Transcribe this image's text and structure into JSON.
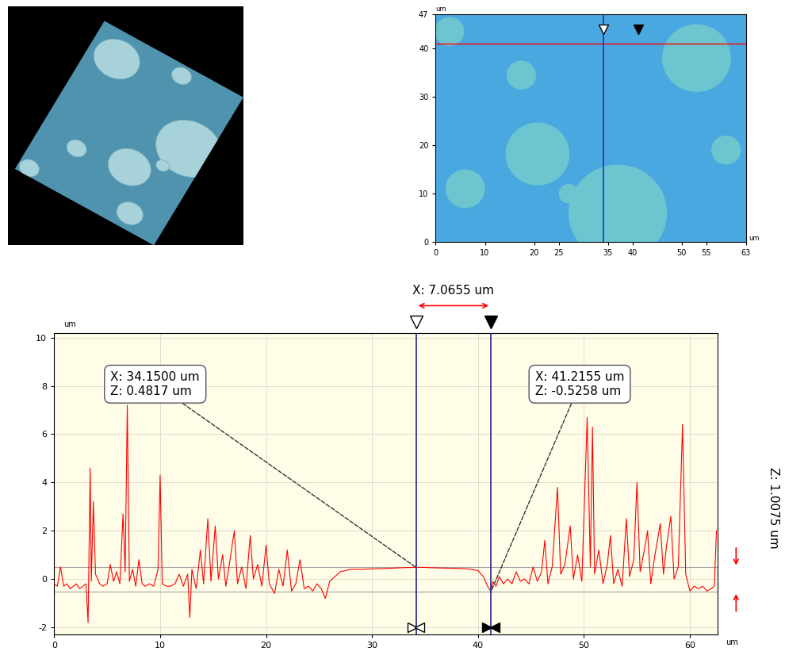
{
  "chart_data": [
    {
      "type": "image_map",
      "xlabel": "um",
      "ylabel": "um",
      "xlim": [
        0,
        63
      ],
      "ylim": [
        0,
        47
      ],
      "xticks": [
        0,
        10,
        20,
        25,
        35,
        40,
        50,
        55,
        63
      ],
      "yticks": [
        0,
        10,
        20,
        30,
        40,
        47
      ],
      "profile_y": 41,
      "cursors_x": [
        34.15,
        41.2155
      ],
      "regions": [
        {
          "x": 37,
          "y": 6,
          "r": 10
        },
        {
          "x": 20.7,
          "y": 18.2,
          "r": 6.5
        },
        {
          "x": 6,
          "y": 11,
          "r": 4
        },
        {
          "x": 53,
          "y": 38,
          "r": 7
        },
        {
          "x": 2.8,
          "y": 43.5,
          "r": 3
        },
        {
          "x": 17.4,
          "y": 34.5,
          "r": 3
        },
        {
          "x": 59,
          "y": 19,
          "r": 3
        },
        {
          "x": 27,
          "y": 10,
          "r": 2
        }
      ]
    },
    {
      "type": "line",
      "xlabel": "um",
      "ylabel": "um",
      "xlim": [
        0,
        62.6
      ],
      "ylim": [
        -2.3,
        10.2
      ],
      "xticks": [
        0,
        10,
        20,
        30,
        40,
        50,
        60
      ],
      "yticks": [
        -2,
        0,
        2,
        4,
        6,
        8,
        10
      ],
      "grid": true,
      "color": "#ff0000",
      "x": [
        0,
        0.3,
        0.6,
        0.9,
        1.2,
        1.5,
        1.8,
        2.1,
        2.4,
        2.7,
        3.0,
        3.2,
        3.4,
        3.5,
        3.7,
        3.9,
        4.3,
        4.6,
        5.0,
        5.3,
        5.6,
        5.9,
        6.2,
        6.5,
        6.7,
        6.9,
        7.1,
        7.4,
        7.7,
        8.0,
        8.3,
        8.6,
        9.0,
        9.4,
        9.8,
        10.0,
        10.2,
        10.6,
        11.0,
        11.4,
        11.8,
        12.2,
        12.6,
        12.8,
        13.0,
        13.4,
        13.8,
        14.1,
        14.5,
        14.8,
        15.2,
        15.5,
        15.9,
        16.2,
        16.6,
        17.0,
        17.3,
        17.7,
        18.1,
        18.5,
        18.8,
        19.2,
        19.6,
        20.0,
        20.3,
        20.8,
        21.2,
        21.6,
        22.0,
        22.4,
        22.8,
        23.2,
        23.6,
        24.0,
        24.4,
        24.8,
        25.2,
        25.6,
        26.0,
        26.5,
        27.0,
        27.5,
        28.0,
        29.0,
        30.0,
        31.0,
        32.0,
        33.0,
        34.15,
        35.0,
        36.0,
        37.0,
        38.0,
        39.0,
        40.0,
        40.5,
        40.9,
        41.2155,
        41.4,
        41.7,
        42.0,
        42.4,
        42.8,
        43.2,
        43.6,
        44.0,
        44.4,
        44.8,
        45.2,
        45.6,
        46.0,
        46.3,
        46.6,
        47.0,
        47.5,
        47.8,
        48.2,
        48.7,
        49.0,
        49.4,
        49.8,
        50.3,
        50.6,
        50.8,
        51.0,
        51.4,
        51.8,
        52.2,
        52.5,
        52.8,
        53.2,
        53.6,
        54.0,
        54.3,
        54.7,
        55.0,
        55.3,
        55.7,
        56.0,
        56.3,
        56.7,
        57.2,
        57.5,
        57.8,
        58.2,
        58.5,
        58.9,
        59.3,
        59.6,
        60.0,
        60.4,
        60.8,
        61.2,
        61.6,
        62.0,
        62.3,
        62.5
      ],
      "values": [
        -0.2,
        -0.3,
        0.5,
        -0.3,
        -0.2,
        -0.4,
        -0.3,
        -0.2,
        -0.4,
        -0.3,
        -0.2,
        -1.8,
        4.6,
        -0.1,
        3.2,
        0.2,
        -0.2,
        -0.3,
        -0.2,
        0.6,
        -0.1,
        0.3,
        -0.2,
        2.7,
        0.3,
        7.2,
        -0.1,
        0.4,
        -0.3,
        0.8,
        -0.2,
        -0.3,
        -0.2,
        -0.3,
        0.4,
        4.3,
        -0.2,
        -0.3,
        -0.3,
        -0.2,
        0.2,
        -0.3,
        0.2,
        -1.6,
        0.4,
        -0.4,
        1.2,
        -0.2,
        2.5,
        -0.1,
        2.2,
        0.0,
        1.0,
        -0.3,
        0.8,
        2.0,
        -0.2,
        0.5,
        -0.4,
        1.8,
        0.0,
        0.6,
        -0.3,
        1.4,
        -0.2,
        -0.6,
        0.4,
        -0.3,
        1.2,
        -0.5,
        -0.2,
        0.8,
        -0.4,
        -0.3,
        -0.5,
        -0.2,
        -0.4,
        -0.8,
        -0.1,
        0.1,
        0.3,
        0.35,
        0.4,
        0.4,
        0.42,
        0.43,
        0.45,
        0.47,
        0.4817,
        0.48,
        0.46,
        0.45,
        0.44,
        0.42,
        0.35,
        0.1,
        -0.3,
        -0.5258,
        -0.1,
        -0.3,
        0.1,
        -0.2,
        0.0,
        -0.2,
        0.3,
        -0.1,
        0.0,
        -0.2,
        0.5,
        -0.1,
        0.3,
        1.6,
        -0.2,
        0.5,
        3.8,
        0.2,
        0.6,
        2.2,
        0.0,
        1.0,
        -0.1,
        6.7,
        0.5,
        6.3,
        0.2,
        1.2,
        -0.2,
        0.6,
        1.8,
        -0.2,
        0.4,
        -0.3,
        2.5,
        0.1,
        0.8,
        4.0,
        0.3,
        1.2,
        2.0,
        -0.2,
        1.0,
        2.3,
        0.2,
        1.4,
        2.6,
        0.0,
        0.5,
        6.4,
        0.2,
        -0.5,
        -0.3,
        -0.4,
        -0.3,
        -0.5,
        -0.4,
        -0.3,
        2.0
      ],
      "cursors": [
        {
          "x": 34.15,
          "z": 0.4817,
          "label": "X: 34.1500 um\nZ: 0.4817 um"
        },
        {
          "x": 41.2155,
          "z": -0.5258,
          "label": "X: 41.2155 um\nZ: -0.5258 um"
        }
      ],
      "delta_x_label": "X: 7.0655 um",
      "delta_z_label": "Z: 1.0075 um"
    }
  ]
}
